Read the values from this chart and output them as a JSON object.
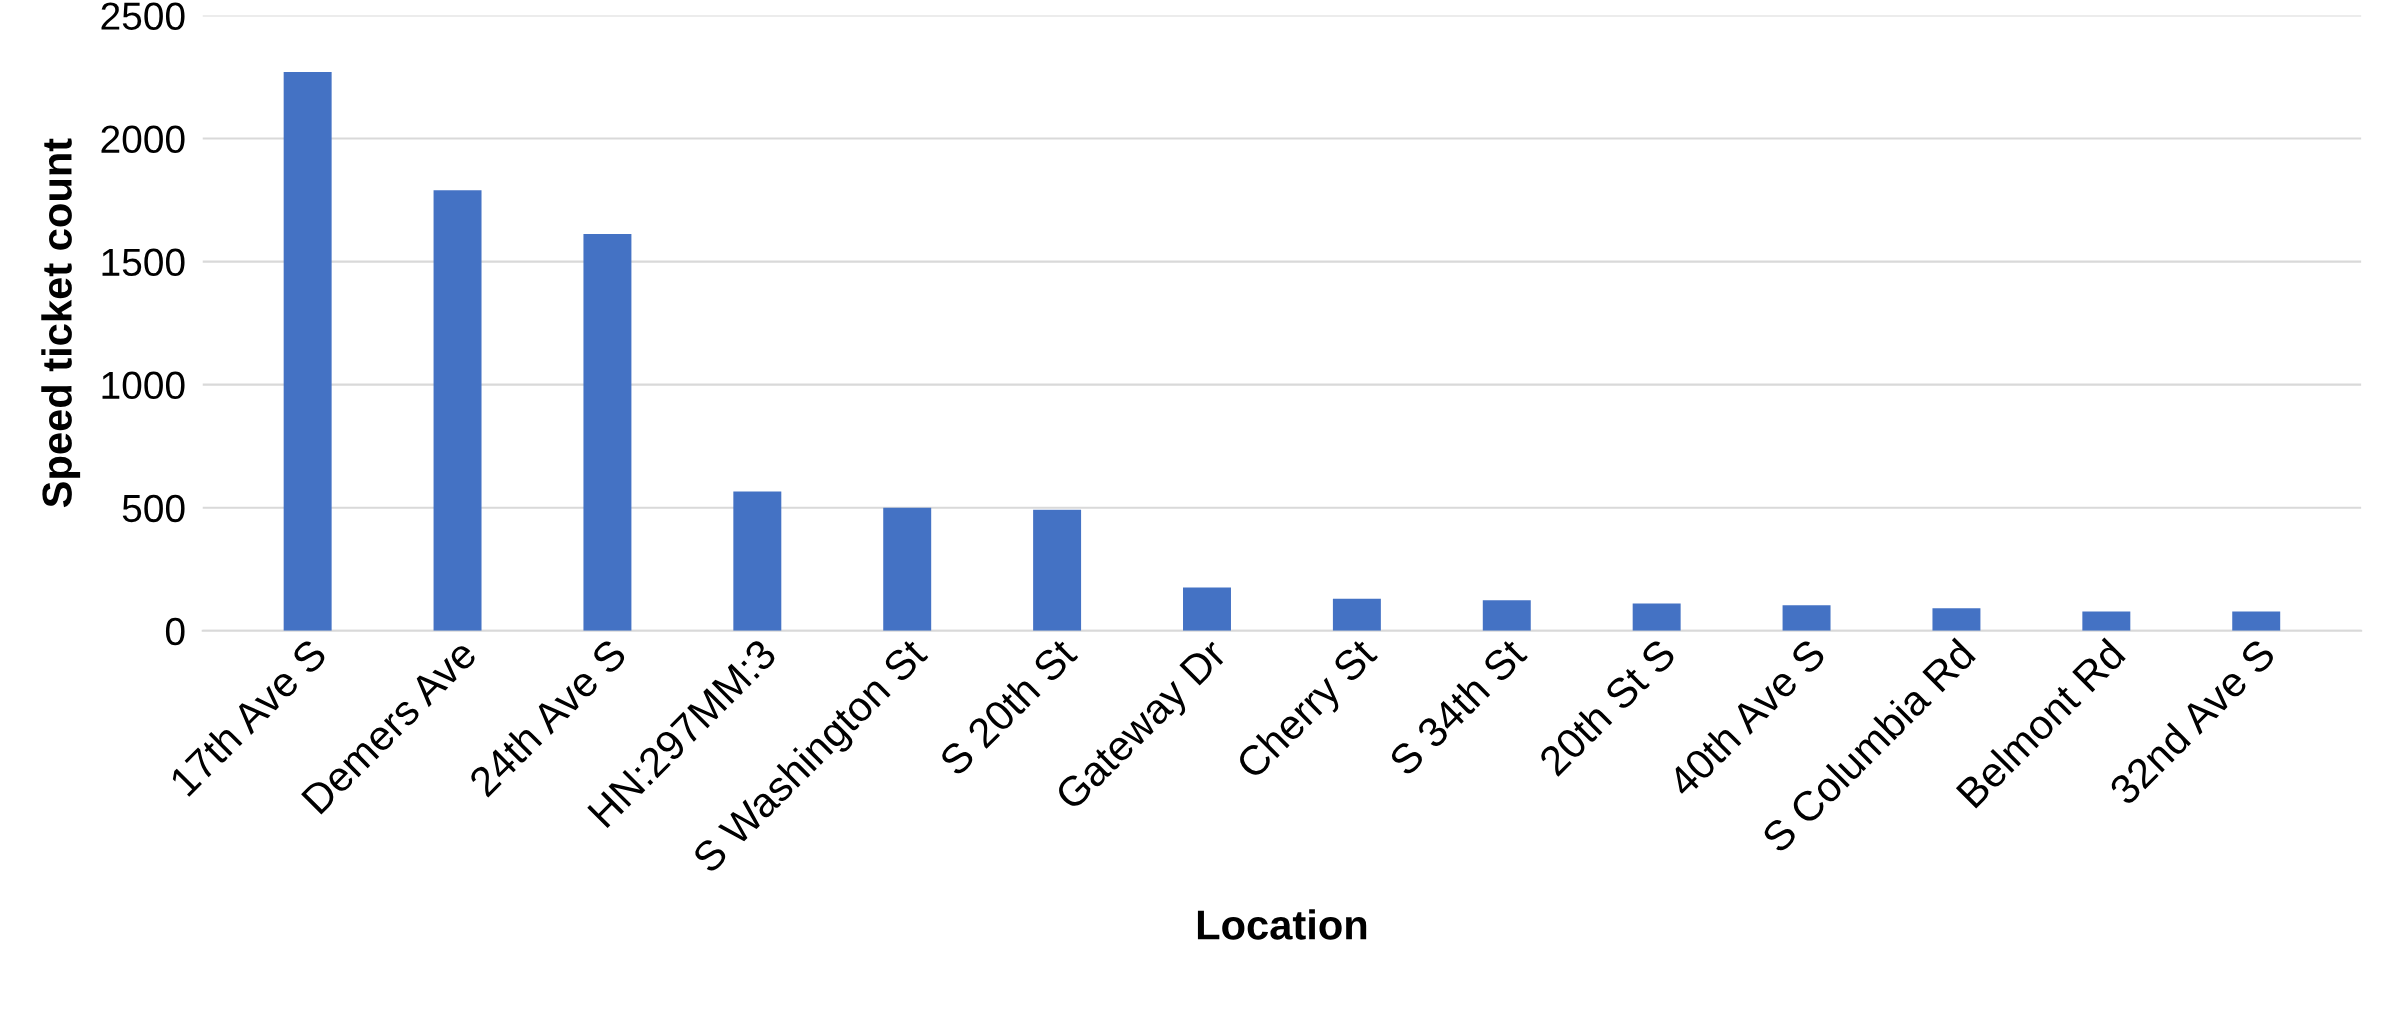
{
  "chart_data": {
    "type": "bar",
    "xlabel": "Location",
    "ylabel": "Speed ticket count",
    "categories": [
      "17th Ave S",
      "Demers Ave",
      "24th Ave S",
      "HN:297MM:3",
      "S Washington St",
      "S 20th St",
      "Gateway Dr",
      "Cherry St",
      "S 34th St",
      "20th St S",
      "40th Ave S",
      "S Columbia Rd",
      "Belmont Rd",
      "32nd Ave S"
    ],
    "values": [
      2270,
      1790,
      1612,
      566,
      500,
      492,
      176,
      130,
      124,
      111,
      104,
      91,
      78,
      78
    ],
    "color": "#4472c4",
    "ylim": [
      0,
      2500
    ],
    "yticks": [
      0,
      500,
      1000,
      1500,
      2000,
      2500
    ],
    "grid": "y"
  }
}
